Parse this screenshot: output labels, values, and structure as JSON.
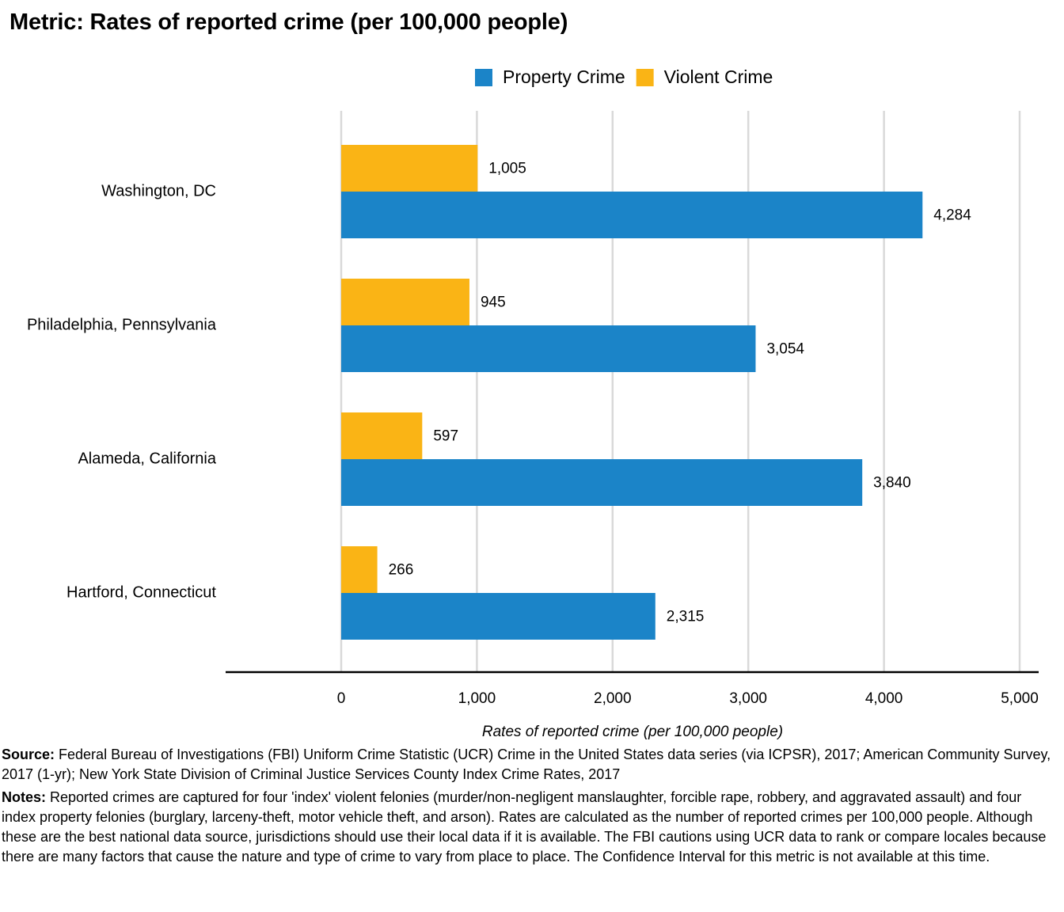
{
  "title": "Metric: Rates of reported crime (per 100,000 people)",
  "chart_data": {
    "type": "bar",
    "orientation": "horizontal",
    "categories": [
      "Washington, DC",
      "Philadelphia, Pennsylvania",
      "Alameda, California",
      "Hartford, Connecticut"
    ],
    "series": [
      {
        "name": "Violent Crime",
        "color": "#FAB415",
        "values": [
          1005,
          945,
          597,
          266
        ],
        "labels": [
          "1,005",
          "945",
          "597",
          "266"
        ]
      },
      {
        "name": "Property Crime",
        "color": "#1B84C8",
        "values": [
          4284,
          3054,
          3840,
          2315
        ],
        "labels": [
          "4,284",
          "3,054",
          "3,840",
          "2,315"
        ]
      }
    ],
    "legend": [
      "Property Crime",
      "Violent Crime"
    ],
    "legend_position": "top-right",
    "xlim": [
      0,
      5000
    ],
    "xticks": [
      0,
      1000,
      2000,
      3000,
      4000,
      5000
    ],
    "xtick_labels": [
      "0",
      "1,000",
      "2,000",
      "3,000",
      "4,000",
      "5,000"
    ],
    "xlabel": "Rates of reported crime (per 100,000 people)",
    "ylabel": "",
    "grid": "vertical"
  },
  "footer": {
    "source_label": "Source:",
    "source_text": " Federal Bureau of Investigations (FBI) Uniform Crime Statistic (UCR) Crime in the United States data series (via ICPSR), 2017; American Community Survey, 2017 (1-yr); New York State Division of Criminal Justice Services County Index Crime Rates, 2017",
    "notes_label": "Notes:",
    "notes_text": " Reported crimes are captured for four 'index' violent felonies (murder/non-negligent manslaughter, forcible rape, robbery, and aggravated assault) and four index property felonies (burglary, larceny-theft, motor vehicle theft, and arson). Rates are calculated as the number of reported crimes per 100,000 people. Although these are the best national data source, jurisdictions should use their local data if it is available. The FBI cautions using UCR data to rank or compare locales because there are many factors that cause the nature and type of crime to vary from place to place. The Confidence Interval for this metric is not available at this time."
  }
}
